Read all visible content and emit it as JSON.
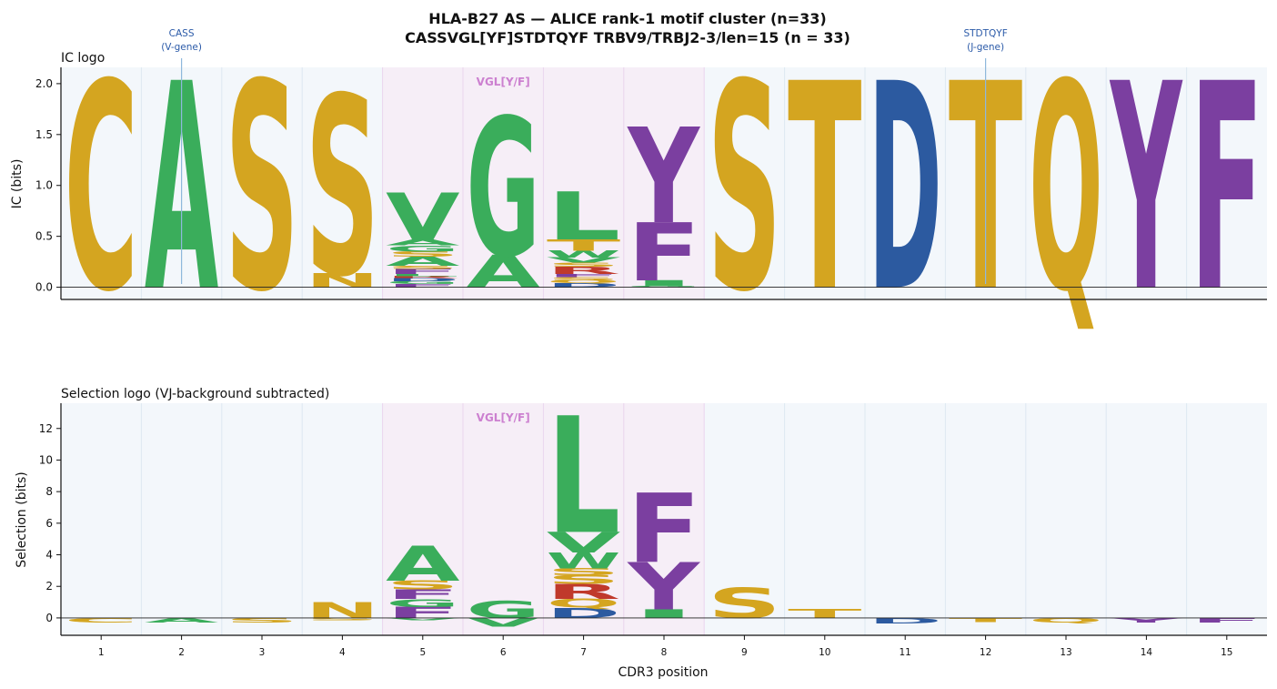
{
  "figure": {
    "title": "HLA-B27 AS — ALICE rank-1 motif cluster (n=33)",
    "subtitle": "CASSVGL[YF]STDTQYF  TRBV9/TRBJ2-3/len=15  (n = 33)"
  },
  "colors": {
    "S": "#d4a520",
    "T": "#d4a520",
    "C": "#d4a520",
    "N": "#d4a520",
    "Q": "#d4a520",
    "A": "#3aad5b",
    "G": "#3aad5b",
    "L": "#3aad5b",
    "V": "#3aad5b",
    "I": "#3aad5b",
    "M": "#3aad5b",
    "P": "#3aad5b",
    "W": "#3aad5b",
    "D": "#2c5aa0",
    "E": "#2c5aa0",
    "R": "#c0392b",
    "K": "#c0392b",
    "H": "#c0392b",
    "F": "#7b3fa0",
    "Y": "#7b3fa0",
    "v_region_bg": "#f3f7fb",
    "cdr_region_bg": "#f6eef7",
    "cdr_label": "#cc80d0",
    "annotation": "#2b5aa8"
  },
  "annotations": [
    {
      "label": "CASS",
      "sublabel": "(V-gene)",
      "position": 2
    },
    {
      "label": "STDTQYF",
      "sublabel": "(J-gene)",
      "position": 12
    }
  ],
  "chart_data": [
    {
      "type": "logo",
      "title": "IC logo",
      "ylabel": "IC (bits)",
      "xlabel": "",
      "ylim": [
        -0.12,
        2.16
      ],
      "yticks": [
        0.0,
        0.5,
        1.0,
        1.5,
        2.0
      ],
      "grid": false,
      "region_label": "VGL[Y/F]",
      "region_positions": [
        5,
        6,
        7,
        8
      ],
      "positions": [
        {
          "pos": 1,
          "letters": [
            {
              "aa": "C",
              "bits": 2.04
            }
          ]
        },
        {
          "pos": 2,
          "letters": [
            {
              "aa": "A",
              "bits": 2.04
            }
          ]
        },
        {
          "pos": 3,
          "letters": [
            {
              "aa": "S",
              "bits": 2.04
            }
          ]
        },
        {
          "pos": 4,
          "letters": [
            {
              "aa": "N",
              "bits": 0.14
            },
            {
              "aa": "S",
              "bits": 1.76
            }
          ]
        },
        {
          "pos": 5,
          "letters": [
            {
              "aa": "F",
              "bits": 0.03
            },
            {
              "aa": "G",
              "bits": 0.03
            },
            {
              "aa": "D",
              "bits": 0.03
            },
            {
              "aa": "R",
              "bits": 0.02
            },
            {
              "aa": "L",
              "bits": 0.02
            },
            {
              "aa": "F",
              "bits": 0.05
            },
            {
              "aa": "S",
              "bits": 0.03
            },
            {
              "aa": "A",
              "bits": 0.09
            },
            {
              "aa": "S",
              "bits": 0.05
            },
            {
              "aa": "G",
              "bits": 0.06
            },
            {
              "aa": "A",
              "bits": 0.06
            },
            {
              "aa": "V",
              "bits": 0.46
            }
          ]
        },
        {
          "pos": 6,
          "letters": [
            {
              "aa": "A",
              "bits": 0.32
            },
            {
              "aa": "G",
              "bits": 1.36
            }
          ]
        },
        {
          "pos": 7,
          "letters": [
            {
              "aa": "D",
              "bits": 0.04
            },
            {
              "aa": "Q",
              "bits": 0.03
            },
            {
              "aa": "S",
              "bits": 0.03
            },
            {
              "aa": "F",
              "bits": 0.03
            },
            {
              "aa": "R",
              "bits": 0.07
            },
            {
              "aa": "S",
              "bits": 0.04
            },
            {
              "aa": "V",
              "bits": 0.05
            },
            {
              "aa": "W",
              "bits": 0.07
            },
            {
              "aa": "T",
              "bits": 0.11
            },
            {
              "aa": "L",
              "bits": 0.47
            }
          ]
        },
        {
          "pos": 8,
          "letters": [
            {
              "aa": "G",
              "bits": 0.01
            },
            {
              "aa": "I",
              "bits": 0.06
            },
            {
              "aa": "F",
              "bits": 0.57
            },
            {
              "aa": "Y",
              "bits": 0.94
            }
          ]
        },
        {
          "pos": 9,
          "letters": [
            {
              "aa": "S",
              "bits": 2.04
            }
          ]
        },
        {
          "pos": 10,
          "letters": [
            {
              "aa": "T",
              "bits": 2.04
            }
          ]
        },
        {
          "pos": 11,
          "letters": [
            {
              "aa": "D",
              "bits": 2.04
            }
          ]
        },
        {
          "pos": 12,
          "letters": [
            {
              "aa": "T",
              "bits": 2.04
            }
          ]
        },
        {
          "pos": 13,
          "letters": [
            {
              "aa": "Q",
              "bits": 2.04
            }
          ]
        },
        {
          "pos": 14,
          "letters": [
            {
              "aa": "Y",
              "bits": 2.04
            }
          ]
        },
        {
          "pos": 15,
          "letters": [
            {
              "aa": "F",
              "bits": 2.04
            }
          ]
        }
      ]
    },
    {
      "type": "logo",
      "title": "Selection logo (VJ-background subtracted)",
      "ylabel": "Selection (bits)",
      "xlabel": "CDR3 position",
      "ylim": [
        -1.1,
        13.6
      ],
      "yticks": [
        0,
        2,
        4,
        6,
        8,
        10,
        12
      ],
      "grid": false,
      "region_label": "VGL[Y/F]",
      "region_positions": [
        5,
        6,
        7,
        8
      ],
      "positions": [
        {
          "pos": 1,
          "letters": [
            {
              "aa": "C",
              "bits": -0.3
            }
          ]
        },
        {
          "pos": 2,
          "letters": [
            {
              "aa": "A",
              "bits": -0.3
            }
          ]
        },
        {
          "pos": 3,
          "letters": [
            {
              "aa": "S",
              "bits": -0.3
            }
          ]
        },
        {
          "pos": 4,
          "letters": [
            {
              "aa": "S",
              "bits": -0.15
            },
            {
              "aa": "N",
              "bits": 1.0
            }
          ]
        },
        {
          "pos": 5,
          "letters": [
            {
              "aa": "V",
              "bits": -0.15
            },
            {
              "aa": "F",
              "bits": 0.7
            },
            {
              "aa": "G",
              "bits": 0.5
            },
            {
              "aa": "F",
              "bits": 0.6
            },
            {
              "aa": "S",
              "bits": 0.55
            },
            {
              "aa": "A",
              "bits": 2.2
            }
          ]
        },
        {
          "pos": 6,
          "letters": [
            {
              "aa": "V",
              "bits": -0.55
            },
            {
              "aa": "G",
              "bits": 1.1
            }
          ]
        },
        {
          "pos": 7,
          "letters": [
            {
              "aa": "D",
              "bits": 0.65
            },
            {
              "aa": "Q",
              "bits": 0.55
            },
            {
              "aa": "R",
              "bits": 0.95
            },
            {
              "aa": "S",
              "bits": 0.55
            },
            {
              "aa": "S",
              "bits": 0.45
            },
            {
              "aa": "W",
              "bits": 1.0
            },
            {
              "aa": "V",
              "bits": 1.3
            },
            {
              "aa": "L",
              "bits": 7.4
            }
          ]
        },
        {
          "pos": 8,
          "letters": [
            {
              "aa": "I",
              "bits": 0.55
            },
            {
              "aa": "Y",
              "bits": 3.0
            },
            {
              "aa": "F",
              "bits": 4.4
            }
          ]
        },
        {
          "pos": 9,
          "letters": [
            {
              "aa": "S",
              "bits": 1.9
            }
          ]
        },
        {
          "pos": 10,
          "letters": [
            {
              "aa": "T",
              "bits": 0.55
            }
          ]
        },
        {
          "pos": 11,
          "letters": [
            {
              "aa": "D",
              "bits": -0.35
            }
          ]
        },
        {
          "pos": 12,
          "letters": [
            {
              "aa": "T",
              "bits": -0.25
            }
          ]
        },
        {
          "pos": 13,
          "letters": [
            {
              "aa": "Q",
              "bits": -0.3
            }
          ]
        },
        {
          "pos": 14,
          "letters": [
            {
              "aa": "Y",
              "bits": -0.3
            }
          ]
        },
        {
          "pos": 15,
          "letters": [
            {
              "aa": "F",
              "bits": -0.3
            }
          ]
        }
      ]
    }
  ]
}
